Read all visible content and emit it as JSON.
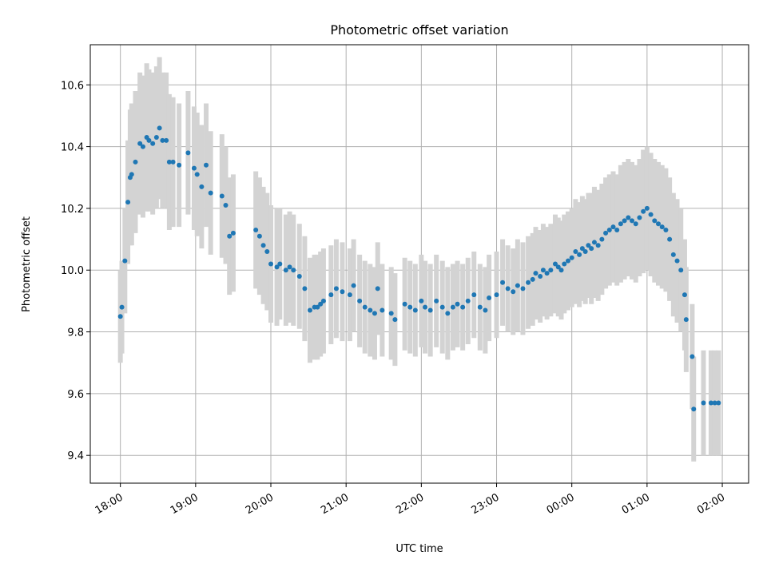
{
  "chart_data": {
    "type": "scatter",
    "title": "Photometric offset variation",
    "xlabel": "UTC time",
    "ylabel": "Photometric offset",
    "x_ticks": [
      "18:00",
      "19:00",
      "20:00",
      "21:00",
      "22:00",
      "23:00",
      "00:00",
      "01:00",
      "02:00"
    ],
    "y_ticks": [
      "9.4",
      "9.6",
      "9.8",
      "10.0",
      "10.2",
      "10.4",
      "10.6"
    ],
    "x_unit": "hours since 18:00 UTC",
    "xlim": [
      -0.4,
      8.35
    ],
    "ylim": [
      9.31,
      10.73
    ],
    "grid": true,
    "point_color": "#1f77b4",
    "errorbar_color": "#d3d3d3",
    "series": [
      {
        "x": [
          0.0,
          0.02,
          0.06,
          0.1,
          0.13,
          0.15,
          0.2,
          0.26,
          0.3,
          0.35,
          0.38,
          0.43,
          0.48,
          0.52,
          0.56,
          0.61,
          0.65,
          0.7,
          0.78,
          0.9,
          0.98,
          1.02,
          1.08,
          1.14,
          1.2,
          1.35,
          1.4,
          1.45,
          1.5,
          1.8,
          1.85,
          1.9,
          1.95,
          2.0,
          2.08,
          2.12,
          2.2,
          2.25,
          2.3,
          2.38,
          2.45,
          2.52,
          2.58,
          2.62,
          2.66,
          2.7,
          2.8,
          2.87,
          2.95,
          3.05,
          3.1,
          3.18,
          3.25,
          3.32,
          3.38,
          3.42,
          3.48,
          3.6,
          3.65,
          3.78,
          3.85,
          3.92,
          4.0,
          4.05,
          4.12,
          4.2,
          4.28,
          4.35,
          4.42,
          4.48,
          4.55,
          4.62,
          4.7,
          4.78,
          4.85,
          4.9,
          5.0,
          5.08,
          5.15,
          5.22,
          5.28,
          5.35,
          5.42,
          5.48,
          5.52,
          5.58,
          5.62,
          5.67,
          5.72,
          5.78,
          5.82,
          5.86,
          5.9,
          5.95,
          6.0,
          6.05,
          6.1,
          6.14,
          6.18,
          6.22,
          6.26,
          6.3,
          6.35,
          6.4,
          6.45,
          6.5,
          6.55,
          6.6,
          6.65,
          6.7,
          6.75,
          6.8,
          6.85,
          6.9,
          6.95,
          7.0,
          7.05,
          7.1,
          7.15,
          7.2,
          7.25,
          7.3,
          7.35,
          7.4,
          7.45,
          7.5,
          7.52,
          7.6,
          7.62,
          7.75,
          7.85,
          7.9,
          7.95
        ],
        "y": [
          9.85,
          9.88,
          10.03,
          10.22,
          10.3,
          10.31,
          10.35,
          10.41,
          10.4,
          10.43,
          10.42,
          10.41,
          10.43,
          10.46,
          10.42,
          10.42,
          10.35,
          10.35,
          10.34,
          10.38,
          10.33,
          10.31,
          10.27,
          10.34,
          10.25,
          10.24,
          10.21,
          10.11,
          10.12,
          10.13,
          10.11,
          10.08,
          10.06,
          10.02,
          10.01,
          10.02,
          10.0,
          10.01,
          10.0,
          9.98,
          9.94,
          9.87,
          9.88,
          9.88,
          9.89,
          9.9,
          9.92,
          9.94,
          9.93,
          9.92,
          9.95,
          9.9,
          9.88,
          9.87,
          9.86,
          9.94,
          9.87,
          9.86,
          9.84,
          9.89,
          9.88,
          9.87,
          9.9,
          9.88,
          9.87,
          9.9,
          9.88,
          9.86,
          9.88,
          9.89,
          9.88,
          9.9,
          9.92,
          9.88,
          9.87,
          9.91,
          9.92,
          9.96,
          9.94,
          9.93,
          9.95,
          9.94,
          9.96,
          9.97,
          9.99,
          9.98,
          10.0,
          9.99,
          10.0,
          10.02,
          10.01,
          10.0,
          10.02,
          10.03,
          10.04,
          10.06,
          10.05,
          10.07,
          10.06,
          10.08,
          10.07,
          10.09,
          10.08,
          10.1,
          10.12,
          10.13,
          10.14,
          10.13,
          10.15,
          10.16,
          10.17,
          10.16,
          10.15,
          10.17,
          10.19,
          10.2,
          10.18,
          10.16,
          10.15,
          10.14,
          10.13,
          10.1,
          10.05,
          10.03,
          10.0,
          9.92,
          9.84,
          9.72,
          9.55,
          9.57,
          9.57,
          9.57,
          9.57
        ],
        "err": [
          0.15,
          0.15,
          0.17,
          0.2,
          0.22,
          0.23,
          0.23,
          0.23,
          0.23,
          0.24,
          0.23,
          0.23,
          0.23,
          0.23,
          0.22,
          0.22,
          0.22,
          0.21,
          0.2,
          0.2,
          0.2,
          0.2,
          0.2,
          0.2,
          0.2,
          0.2,
          0.19,
          0.19,
          0.19,
          0.19,
          0.19,
          0.19,
          0.19,
          0.19,
          0.19,
          0.18,
          0.18,
          0.18,
          0.18,
          0.17,
          0.17,
          0.17,
          0.17,
          0.17,
          0.17,
          0.17,
          0.16,
          0.16,
          0.16,
          0.15,
          0.15,
          0.15,
          0.15,
          0.15,
          0.15,
          0.15,
          0.15,
          0.15,
          0.15,
          0.15,
          0.15,
          0.15,
          0.15,
          0.15,
          0.15,
          0.15,
          0.15,
          0.15,
          0.14,
          0.14,
          0.14,
          0.14,
          0.14,
          0.14,
          0.14,
          0.14,
          0.14,
          0.14,
          0.14,
          0.14,
          0.15,
          0.15,
          0.15,
          0.15,
          0.15,
          0.15,
          0.15,
          0.15,
          0.15,
          0.16,
          0.16,
          0.16,
          0.16,
          0.16,
          0.16,
          0.17,
          0.17,
          0.17,
          0.17,
          0.17,
          0.18,
          0.18,
          0.18,
          0.18,
          0.18,
          0.18,
          0.18,
          0.18,
          0.19,
          0.19,
          0.19,
          0.19,
          0.19,
          0.19,
          0.2,
          0.2,
          0.2,
          0.2,
          0.2,
          0.2,
          0.2,
          0.2,
          0.2,
          0.2,
          0.2,
          0.18,
          0.17,
          0.17,
          0.17,
          0.17,
          0.17,
          0.17,
          0.17
        ]
      }
    ]
  }
}
